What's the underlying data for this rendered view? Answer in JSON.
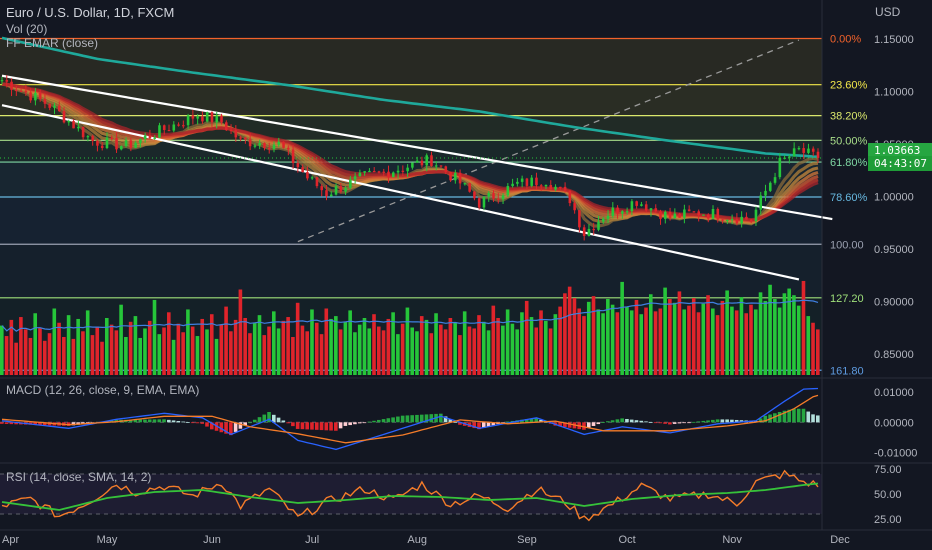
{
  "header": {
    "title": "Euro / U.S. Dollar, 1D, FXCM",
    "indicator_vol": "Vol (20)",
    "indicator_ema": "FF EMAR (close)",
    "currency": "USD"
  },
  "price_tag": {
    "price": "1.03663",
    "countdown": "04:43:07"
  },
  "colors": {
    "background": "#131722",
    "up": "#26c63a",
    "down": "#e0242b",
    "ma": "#1fa99b",
    "channel": "#ffffff",
    "fib_top": "#f2622b",
    "fib_236": "#f3e84a",
    "fib_382": "#dbe86c",
    "fib_500": "#a9de8a",
    "fib_618": "#7fd6a3",
    "fib_786": "#67b8e0",
    "fib_100": "#9aa0b0",
    "fib_127": "#9fe07a",
    "fib_161": "#5e9be0",
    "macd": "#2962ff",
    "signal": "#f57c29",
    "rsi": "#f57c29",
    "rsi_ma": "#36c23a"
  },
  "chart_data": [
    {
      "type": "candlestick",
      "title": "Euro / U.S. Dollar, 1D, FXCM",
      "ylabel": "USD",
      "ylim": [
        0.83,
        1.17
      ],
      "y_ticks": [
        "1.15000",
        "1.10000",
        "1.05000",
        "1.00000",
        "0.95000",
        "0.90000",
        "0.85000"
      ],
      "x_ticks": [
        "Apr",
        "May",
        "Jun",
        "Jul",
        "Aug",
        "Sep",
        "Oct",
        "Nov",
        "Dec"
      ],
      "fib_levels": [
        {
          "label": "0.00%",
          "price": 1.1505
        },
        {
          "label": "23.60%",
          "price": 1.1065
        },
        {
          "label": "38.20%",
          "price": 1.077
        },
        {
          "label": "50.00%",
          "price": 1.0535
        },
        {
          "label": "61.80%",
          "price": 1.0328
        },
        {
          "label": "78.60%",
          "price": 0.9995
        },
        {
          "label": "100.00",
          "price": 0.9545
        },
        {
          "label": "127.20",
          "price": 0.9035
        },
        {
          "label": "161.80",
          "price": 0.8345
        }
      ],
      "close_anchors": [
        [
          0,
          1.111
        ],
        [
          10,
          1.087
        ],
        [
          19,
          1.053
        ],
        [
          26,
          1.048
        ],
        [
          33,
          1.062
        ],
        [
          41,
          1.078
        ],
        [
          46,
          1.071
        ],
        [
          50,
          1.053
        ],
        [
          58,
          1.05
        ],
        [
          64,
          1.018
        ],
        [
          68,
          1.003
        ],
        [
          76,
          1.019
        ],
        [
          82,
          1.025
        ],
        [
          90,
          1.035
        ],
        [
          96,
          1.013
        ],
        [
          100,
          0.994
        ],
        [
          108,
          1.012
        ],
        [
          114,
          1.016
        ],
        [
          119,
          0.998
        ],
        [
          122,
          0.965
        ],
        [
          126,
          0.982
        ],
        [
          133,
          0.996
        ],
        [
          140,
          0.98
        ],
        [
          146,
          0.985
        ],
        [
          150,
          0.983
        ],
        [
          157,
          0.978
        ],
        [
          163,
          1.032
        ],
        [
          167,
          1.044
        ],
        [
          170,
          1.038
        ],
        [
          174,
          1.037
        ]
      ],
      "last_price": 1.03663,
      "ma_anchors": [
        [
          0,
          1.151
        ],
        [
          20,
          1.131
        ],
        [
          40,
          1.118
        ],
        [
          60,
          1.106
        ],
        [
          80,
          1.092
        ],
        [
          100,
          1.081
        ],
        [
          120,
          1.066
        ],
        [
          140,
          1.053
        ],
        [
          160,
          1.041
        ],
        [
          174,
          1.037
        ]
      ],
      "channel_lines": [
        {
          "p1": [
            0,
            1.115
          ],
          "p2": [
            174,
            0.9785
          ]
        },
        {
          "p1": [
            0,
            1.087
          ],
          "p2": [
            167,
            0.921
          ]
        }
      ],
      "diagonal": {
        "p1": [
          62,
          0.957
        ],
        "p2": [
          167,
          1.149
        ]
      }
    },
    {
      "type": "bar",
      "title": "Vol (20)",
      "values": [
        5.2,
        4.1,
        5.8,
        3.4,
        6.1,
        4.8,
        3.9,
        6.5,
        5.0,
        3.6,
        4.4,
        7.0,
        5.5,
        4.0,
        6.3,
        3.8,
        5.9,
        4.6,
        6.8,
        4.2,
        5.1,
        3.5,
        6.0,
        5.3,
        4.7,
        7.4,
        4.0,
        5.6,
        6.2,
        3.9,
        4.9,
        5.7,
        7.9,
        4.3,
        5.0,
        6.6,
        3.7,
        5.4,
        4.5,
        6.9,
        5.1,
        4.1,
        5.9,
        4.8,
        6.4,
        3.8,
        5.3,
        7.2,
        4.6,
        5.8,
        9.0,
        6.0,
        4.4,
        5.5,
        6.3,
        4.2,
        5.1,
        6.7,
        4.9,
        5.7,
        6.1,
        4.0,
        7.6,
        5.2,
        4.6,
        6.9,
        5.5,
        4.3,
        7.0,
        5.9,
        6.2,
        4.8,
        5.6,
        6.8,
        4.5,
        5.3,
        6.0,
        4.9,
        6.4,
        5.1,
        4.7,
        5.9,
        6.6,
        4.3,
        5.4,
        7.1,
        5.0,
        4.6,
        6.2,
        5.8,
        4.4,
        6.5,
        5.3,
        4.8,
        6.0,
        5.5,
        4.2,
        6.7,
        5.1,
        4.9,
        6.3,
        5.6,
        4.7,
        7.3,
        6.0,
        5.2,
        6.9,
        5.4,
        4.8,
        6.6,
        7.8,
        6.1,
        5.0,
        6.8,
        5.7,
        4.9,
        6.4,
        7.2,
        8.6,
        9.3,
        8.1,
        7.0,
        6.2,
        7.7,
        8.3,
        6.9,
        6.5,
        8.0,
        7.4,
        6.6,
        9.8,
        7.2,
        6.8,
        7.9,
        6.4,
        7.1,
        8.5,
        6.7,
        7.0,
        9.2,
        8.0,
        7.6,
        8.8,
        6.9,
        7.3,
        8.1,
        6.6,
        7.5,
        8.4,
        7.0,
        6.3,
        7.8,
        8.9,
        7.2,
        6.8,
        8.2,
        6.5,
        7.4,
        6.9,
        8.7,
        7.8,
        9.5,
        8.0,
        7.1,
        8.6,
        9.1,
        8.4,
        7.3,
        9.9,
        6.2,
        5.5,
        4.8
      ],
      "ma_label": "20"
    },
    {
      "type": "bar+line",
      "title": "MACD (12, 26, close, 9, EMA, EMA)",
      "y_ticks": [
        "0.01000",
        "0.00000",
        "-0.01000"
      ],
      "ylim": [
        -0.0125,
        0.0137
      ],
      "macd_anchors": [
        [
          0,
          0.0005
        ],
        [
          14,
          -0.002
        ],
        [
          24,
          0.001
        ],
        [
          34,
          0.003
        ],
        [
          42,
          0.0015
        ],
        [
          48,
          -0.004
        ],
        [
          56,
          0.001
        ],
        [
          62,
          -0.006
        ],
        [
          70,
          -0.009
        ],
        [
          80,
          -0.004
        ],
        [
          92,
          0.002
        ],
        [
          100,
          -0.002
        ],
        [
          112,
          0.0015
        ],
        [
          122,
          -0.004
        ],
        [
          130,
          -0.0015
        ],
        [
          140,
          -0.0035
        ],
        [
          150,
          -0.0005
        ],
        [
          158,
          0.0005
        ],
        [
          164,
          0.007
        ],
        [
          168,
          0.011
        ],
        [
          174,
          0.0114
        ]
      ],
      "signal_anchors": [
        [
          0,
          0.001
        ],
        [
          14,
          -0.0008
        ],
        [
          24,
          0.0002
        ],
        [
          34,
          0.002
        ],
        [
          44,
          0.002
        ],
        [
          52,
          -0.0015
        ],
        [
          62,
          -0.0038
        ],
        [
          72,
          -0.0068
        ],
        [
          84,
          -0.0042
        ],
        [
          96,
          0.0008
        ],
        [
          106,
          -0.0005
        ],
        [
          116,
          0.0004
        ],
        [
          126,
          -0.0028
        ],
        [
          140,
          -0.0028
        ],
        [
          152,
          -0.0012
        ],
        [
          160,
          0.0005
        ],
        [
          166,
          0.0045
        ],
        [
          170,
          0.0085
        ],
        [
          174,
          0.0102
        ]
      ]
    },
    {
      "type": "line",
      "title": "RSI (14, close, SMA, 14, 2)",
      "y_ticks": [
        "75.00",
        "50.00",
        "25.00"
      ],
      "ylim": [
        20,
        78
      ],
      "rsi_anchors": [
        [
          0,
          38
        ],
        [
          6,
          45
        ],
        [
          12,
          28
        ],
        [
          18,
          42
        ],
        [
          24,
          60
        ],
        [
          28,
          52
        ],
        [
          34,
          58
        ],
        [
          40,
          48
        ],
        [
          46,
          62
        ],
        [
          50,
          38
        ],
        [
          56,
          55
        ],
        [
          62,
          26
        ],
        [
          68,
          42
        ],
        [
          76,
          55
        ],
        [
          82,
          44
        ],
        [
          88,
          60
        ],
        [
          94,
          40
        ],
        [
          100,
          48
        ],
        [
          106,
          36
        ],
        [
          112,
          55
        ],
        [
          118,
          42
        ],
        [
          122,
          25
        ],
        [
          128,
          40
        ],
        [
          134,
          58
        ],
        [
          140,
          45
        ],
        [
          148,
          50
        ],
        [
          154,
          40
        ],
        [
          158,
          62
        ],
        [
          164,
          70
        ],
        [
          168,
          62
        ],
        [
          172,
          58
        ],
        [
          174,
          60
        ]
      ],
      "rsi_ma_anchors": [
        [
          0,
          42
        ],
        [
          12,
          34
        ],
        [
          22,
          46
        ],
        [
          32,
          52
        ],
        [
          42,
          54
        ],
        [
          52,
          47
        ],
        [
          62,
          41
        ],
        [
          72,
          44
        ],
        [
          82,
          48
        ],
        [
          92,
          47
        ],
        [
          102,
          44
        ],
        [
          112,
          46
        ],
        [
          122,
          38
        ],
        [
          132,
          45
        ],
        [
          142,
          49
        ],
        [
          152,
          51
        ],
        [
          160,
          54
        ],
        [
          168,
          59
        ],
        [
          174,
          62
        ]
      ]
    }
  ]
}
